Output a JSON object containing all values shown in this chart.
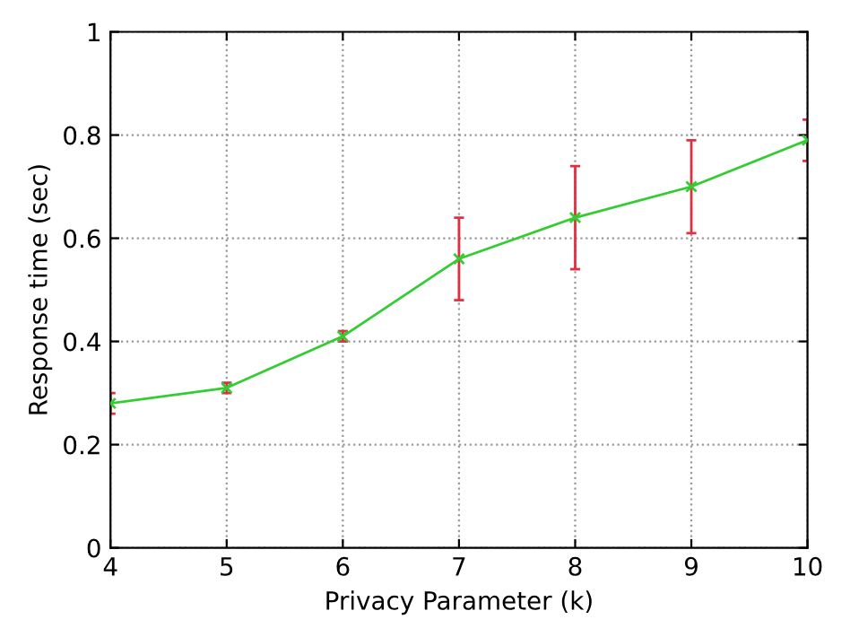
{
  "chart_data": {
    "type": "line",
    "xlabel": "Privacy Parameter (k)",
    "ylabel": "Response time (sec)",
    "x": [
      4,
      5,
      6,
      7,
      8,
      9,
      10
    ],
    "series": [
      {
        "color": "#33cc33",
        "values": [
          0.28,
          0.31,
          0.41,
          0.56,
          0.64,
          0.7,
          0.79
        ],
        "errors": [
          0.02,
          0.01,
          0.01,
          0.08,
          0.1,
          0.09,
          0.04
        ]
      }
    ],
    "xlim": [
      4,
      10
    ],
    "xticks": [
      4,
      5,
      6,
      7,
      8,
      9,
      10
    ],
    "ylim": [
      0,
      1
    ],
    "yticks": [
      0,
      0.2,
      0.4,
      0.6,
      0.8,
      1
    ],
    "grid": true,
    "marker": "cross",
    "line_style": "solid"
  }
}
